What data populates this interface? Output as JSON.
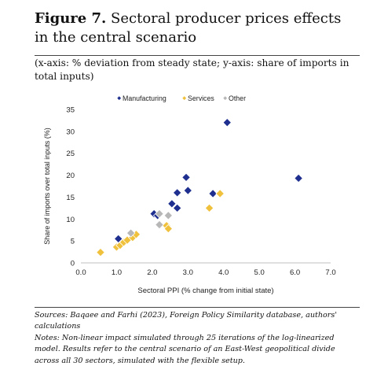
{
  "figure": {
    "number": "Figure 7.",
    "title": "Sectoral producer prices effects in the central scenario",
    "subtitle": "(x-axis: % deviation from steady state; y-axis: share of imports in total inputs)"
  },
  "chart_data": {
    "type": "scatter",
    "xlabel": "Sectoral PPI (% change from initial state)",
    "ylabel": "Share of imports over total inputs (%)",
    "xlim": [
      0,
      7
    ],
    "ylim": [
      0,
      35
    ],
    "xticks": [
      "0.0",
      "1.0",
      "2.0",
      "3.0",
      "4.0",
      "5.0",
      "6.0",
      "7.0"
    ],
    "yticks": [
      "0",
      "5",
      "10",
      "15",
      "20",
      "25",
      "30",
      "35"
    ],
    "grid": false,
    "legend_position": "top",
    "series": [
      {
        "name": "Manufacturing",
        "color": "#1f2f8f",
        "points": [
          [
            1.05,
            5.5
          ],
          [
            2.05,
            11.2
          ],
          [
            2.15,
            10.8
          ],
          [
            2.55,
            13.5
          ],
          [
            2.7,
            12.5
          ],
          [
            2.7,
            16.0
          ],
          [
            2.95,
            19.5
          ],
          [
            3.0,
            16.5
          ],
          [
            3.7,
            15.8
          ],
          [
            4.1,
            32.0
          ],
          [
            6.1,
            19.3
          ]
        ]
      },
      {
        "name": "Services",
        "color": "#f0c13c",
        "points": [
          [
            0.55,
            2.4
          ],
          [
            1.0,
            3.6
          ],
          [
            1.1,
            4.0
          ],
          [
            1.2,
            4.7
          ],
          [
            1.3,
            5.2
          ],
          [
            1.45,
            5.8
          ],
          [
            1.55,
            6.5
          ],
          [
            2.4,
            8.5
          ],
          [
            2.45,
            7.8
          ],
          [
            3.6,
            12.5
          ],
          [
            3.9,
            15.8
          ]
        ]
      },
      {
        "name": "Other",
        "color": "#b7b7b7",
        "points": [
          [
            1.4,
            6.8
          ],
          [
            2.2,
            11.2
          ],
          [
            2.2,
            8.7
          ],
          [
            2.45,
            10.8
          ]
        ]
      }
    ]
  },
  "notes": {
    "sources": "Sources: Baqaee and Farhi (2023), Foreign Policy Similarity database, authors' calculations",
    "notes": "Notes: Non-linear impact simulated through 25 iterations of the log-linearized model. Results refer to the central scenario of an East-West geopolitical divide across all 30 sectors, simulated with the flexible setup."
  }
}
